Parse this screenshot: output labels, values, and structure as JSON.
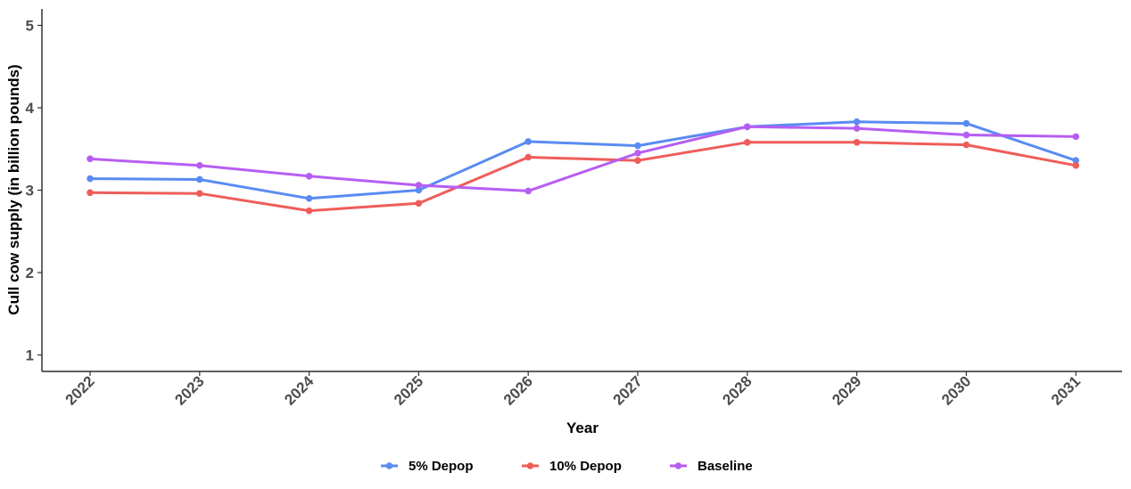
{
  "chart_data": {
    "type": "line",
    "title": "",
    "xlabel": "Year",
    "ylabel": "Cull cow supply (in billion pounds)",
    "categories": [
      "2022",
      "2023",
      "2024",
      "2025",
      "2026",
      "2027",
      "2028",
      "2029",
      "2030",
      "2031"
    ],
    "ylim": [
      0.8,
      5.2
    ],
    "yticks": [
      1,
      2,
      3,
      4,
      5
    ],
    "grid": false,
    "legend_position": "bottom",
    "series": [
      {
        "name": "5% Depop",
        "color": "#5a8bf2",
        "values": [
          3.14,
          3.13,
          2.9,
          3.0,
          3.59,
          3.54,
          3.77,
          3.83,
          3.81,
          3.36
        ]
      },
      {
        "name": "10% Depop",
        "color": "#ee5d5a",
        "values": [
          2.97,
          2.96,
          2.75,
          2.84,
          3.4,
          3.36,
          3.58,
          3.58,
          3.55,
          3.3
        ]
      },
      {
        "name": "Baseline",
        "color": "#b65ef2",
        "values": [
          3.38,
          3.3,
          3.17,
          3.06,
          2.99,
          3.45,
          3.77,
          3.75,
          3.67,
          3.65
        ]
      }
    ]
  }
}
